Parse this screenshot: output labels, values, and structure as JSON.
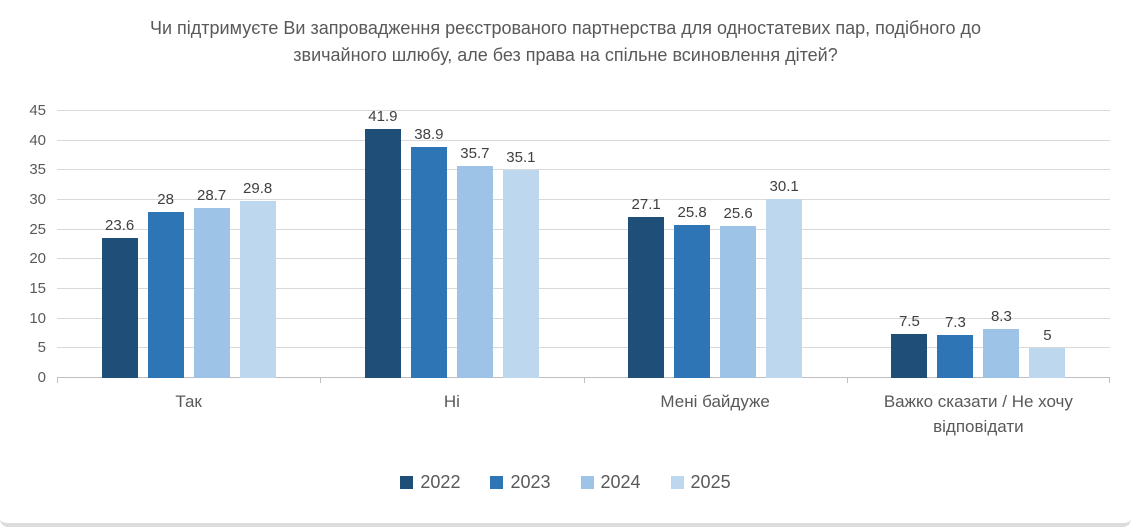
{
  "title": "Чи підтримуєте Ви запровадження реєстрованого партнерства для одностатевих пар, подібного до звичайного шлюбу, але без права на спільне всиновлення дітей?",
  "chart_data": {
    "type": "bar",
    "title": "Чи підтримуєте Ви запровадження реєстрованого партнерства для одностатевих пар, подібного до звичайного шлюбу, але без права на спільне всиновлення дітей?",
    "categories": [
      "Так",
      "Ні",
      "Мені байдуже",
      "Важко сказати / Не хочу відповідати"
    ],
    "series": [
      {
        "name": "2022",
        "color": "#1F4E79",
        "values": [
          23.6,
          41.9,
          27.1,
          7.5
        ]
      },
      {
        "name": "2023",
        "color": "#2E75B6",
        "values": [
          28,
          38.9,
          25.8,
          7.3
        ]
      },
      {
        "name": "2024",
        "color": "#9DC3E6",
        "values": [
          28.7,
          35.7,
          25.6,
          8.3
        ]
      },
      {
        "name": "2025",
        "color": "#BDD7EE",
        "values": [
          29.8,
          35.1,
          30.1,
          5
        ]
      }
    ],
    "xlabel": "",
    "ylabel": "",
    "ylim": [
      0,
      45
    ],
    "yticks": [
      0,
      5,
      10,
      15,
      20,
      25,
      30,
      35,
      40,
      45
    ],
    "grid": true,
    "data_labels": true,
    "legend_position": "bottom"
  },
  "colors": {
    "title_text": "#595959",
    "axis_text": "#595959",
    "data_label_text": "#404040",
    "gridline": "#d9d9d9",
    "axis_line": "#bfbfbf",
    "bottom_border": "#dcdcdc",
    "background": "#ffffff"
  }
}
